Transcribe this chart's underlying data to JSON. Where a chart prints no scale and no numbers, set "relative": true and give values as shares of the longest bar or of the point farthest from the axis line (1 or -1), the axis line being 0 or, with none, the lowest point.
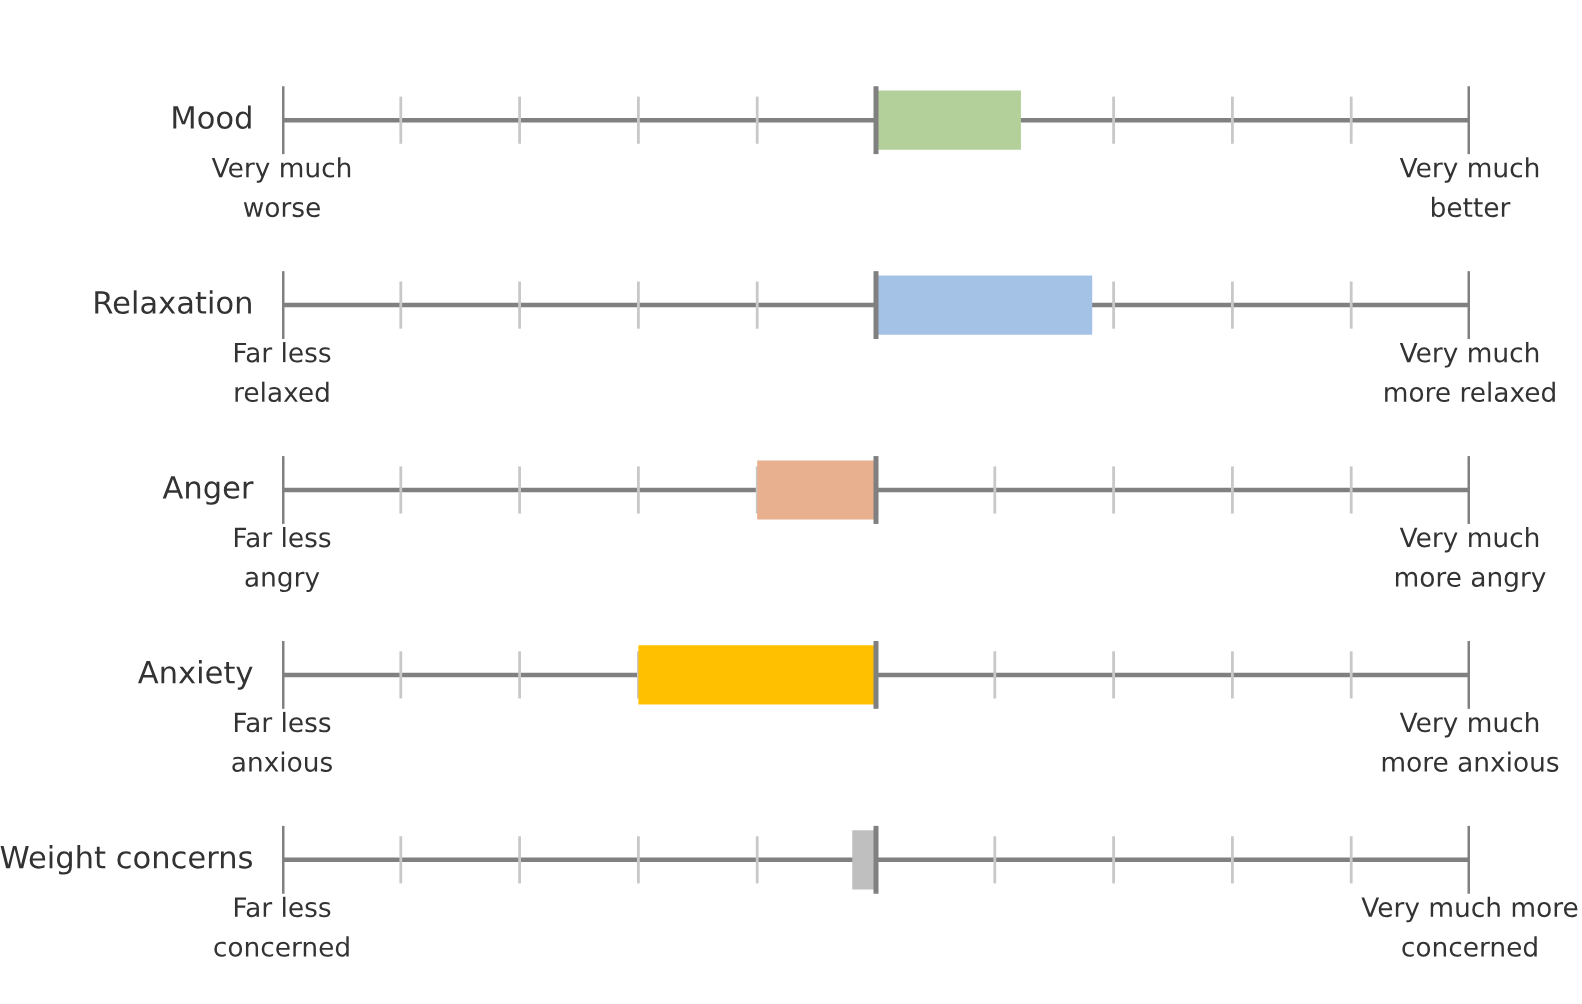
{
  "chart_data": {
    "type": "bar",
    "orientation": "horizontal",
    "relative": true,
    "categories": [
      "Mood",
      "Relaxation",
      "Anger",
      "Anxiety",
      "Weight concerns"
    ],
    "values": [
      0.61,
      0.91,
      -0.5,
      -1,
      -0.1
    ],
    "colors": [
      "#b3d09a",
      "#a4c2e6",
      "#e8b08e",
      "#ffc000",
      "#bfbfbf"
    ],
    "annotations": [
      "Very much\nworse",
      "Very much\nbetter",
      "Far less\nrelaxed",
      "Very much\nmore relaxed",
      "Far less\nangry",
      "Very much\nmore angry",
      "Far less\nanxious",
      "Very much\nmore anxious",
      "Far less\nconcerned",
      "Very much more\nconcerned"
    ],
    "legend": false
  }
}
